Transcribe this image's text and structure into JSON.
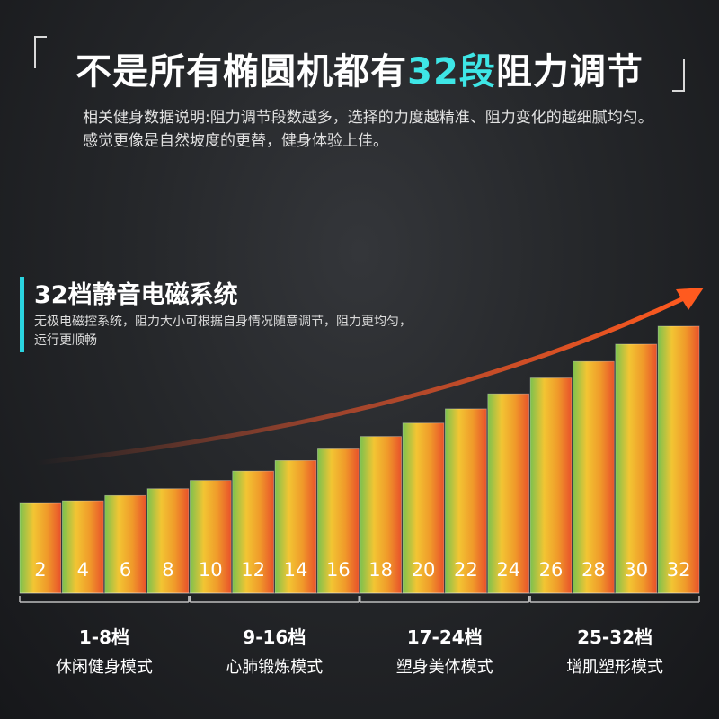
{
  "headline": {
    "prefix": "不是所有椭圆机都有",
    "accent": "32段",
    "suffix": "阻力调节",
    "accent_color": "#3ee6e6"
  },
  "description": "相关健身数据说明:阻力调节段数越多，选择的力度越精准、阻力变化的越细腻均匀。感觉更像是自然坡度的更替，健身体验上佳。",
  "section": {
    "title": "32档静音电磁系统",
    "description": "无极电磁控系统，阻力大小可根据自身情况随意调节，阻力更均匀，运行更顺畅",
    "accent_color": "#2ad4e0"
  },
  "chart_data": {
    "type": "bar",
    "title": "",
    "xlabel": "",
    "ylabel": "",
    "categories": [
      "2",
      "4",
      "6",
      "8",
      "10",
      "12",
      "14",
      "16",
      "18",
      "20",
      "22",
      "24",
      "26",
      "28",
      "30",
      "32"
    ],
    "values": [
      2,
      4,
      6,
      8,
      10,
      12,
      14,
      16,
      18,
      20,
      22,
      24,
      26,
      28,
      30,
      32
    ],
    "gradient_colors": [
      "#7cc14e",
      "#f2c533",
      "#f09a2a",
      "#e8522a"
    ],
    "trend_arrow": true,
    "groups": [
      {
        "range": "1-8档",
        "mode": "休闲健身模式"
      },
      {
        "range": "9-16档",
        "mode": "心肺锻炼模式"
      },
      {
        "range": "17-24档",
        "mode": "塑身美体模式"
      },
      {
        "range": "25-32档",
        "mode": "增肌塑形模式"
      }
    ]
  }
}
